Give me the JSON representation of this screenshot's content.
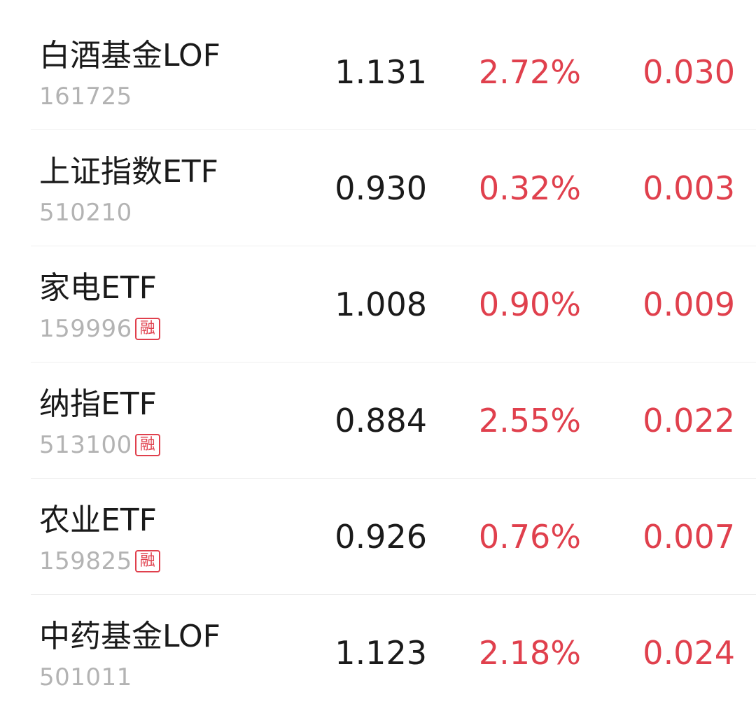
{
  "colors": {
    "up": "#e0404d",
    "text": "#1a1a1a",
    "code": "#b3b3b3",
    "divider": "#eeeeee"
  },
  "rows": [
    {
      "name": "白酒基金LOF",
      "code": "161725",
      "tag": "",
      "price": "1.131",
      "pct": "2.72%",
      "change": "0.030"
    },
    {
      "name": "上证指数ETF",
      "code": "510210",
      "tag": "",
      "price": "0.930",
      "pct": "0.32%",
      "change": "0.003"
    },
    {
      "name": "家电ETF",
      "code": "159996",
      "tag": "融",
      "price": "1.008",
      "pct": "0.90%",
      "change": "0.009"
    },
    {
      "name": "纳指ETF",
      "code": "513100",
      "tag": "融",
      "price": "0.884",
      "pct": "2.55%",
      "change": "0.022"
    },
    {
      "name": "农业ETF",
      "code": "159825",
      "tag": "融",
      "price": "0.926",
      "pct": "0.76%",
      "change": "0.007"
    },
    {
      "name": "中药基金LOF",
      "code": "501011",
      "tag": "",
      "price": "1.123",
      "pct": "2.18%",
      "change": "0.024"
    }
  ]
}
